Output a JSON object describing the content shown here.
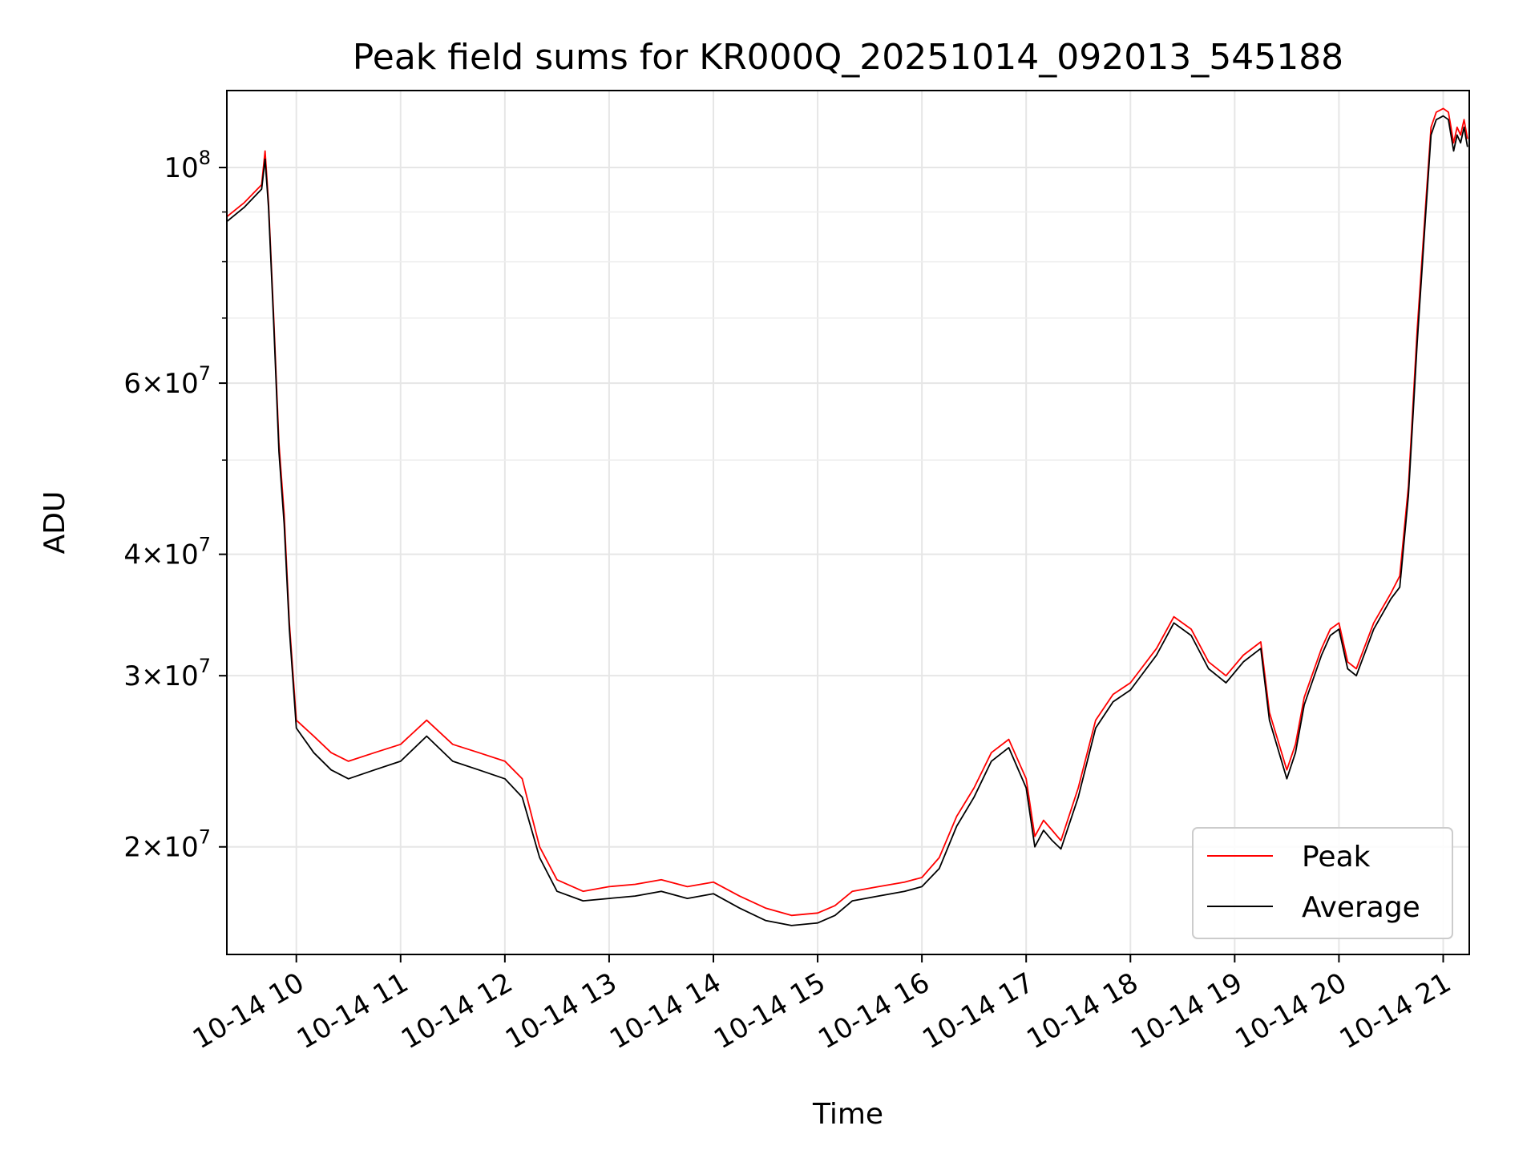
{
  "chart_data": {
    "type": "line",
    "title": "Peak field sums for KR000Q_20251014_092013_545188",
    "xlabel": "Time",
    "ylabel": "ADU",
    "yscale": "log",
    "ylim": [
      15500000,
      120000000
    ],
    "xlim": [
      "2025-10-14 09:20",
      "2025-10-14 21:15"
    ],
    "grid": true,
    "legend_position": "lower-right",
    "x_ticks": [
      {
        "t": "2025-10-14 10:00",
        "label": "10-14 10"
      },
      {
        "t": "2025-10-14 11:00",
        "label": "10-14 11"
      },
      {
        "t": "2025-10-14 12:00",
        "label": "10-14 12"
      },
      {
        "t": "2025-10-14 13:00",
        "label": "10-14 13"
      },
      {
        "t": "2025-10-14 14:00",
        "label": "10-14 14"
      },
      {
        "t": "2025-10-14 15:00",
        "label": "10-14 15"
      },
      {
        "t": "2025-10-14 16:00",
        "label": "10-14 16"
      },
      {
        "t": "2025-10-14 17:00",
        "label": "10-14 17"
      },
      {
        "t": "2025-10-14 18:00",
        "label": "10-14 18"
      },
      {
        "t": "2025-10-14 19:00",
        "label": "10-14 19"
      },
      {
        "t": "2025-10-14 20:00",
        "label": "10-14 20"
      },
      {
        "t": "2025-10-14 21:00",
        "label": "10-14 21"
      }
    ],
    "y_ticks": [
      {
        "value": 20000000,
        "mant": "2",
        "exp": "7"
      },
      {
        "value": 30000000,
        "mant": "3",
        "exp": "7"
      },
      {
        "value": 40000000,
        "mant": "4",
        "exp": "7"
      },
      {
        "value": 60000000,
        "mant": "6",
        "exp": "7"
      },
      {
        "value": 100000000,
        "mant": "",
        "exp": "8"
      }
    ],
    "y_minor": [
      50000000,
      70000000,
      80000000,
      90000000
    ],
    "series": [
      {
        "name": "Peak",
        "color": "#ff0000",
        "x": [
          "2025-10-14 09:20",
          "2025-10-14 09:30",
          "2025-10-14 09:40",
          "2025-10-14 09:42",
          "2025-10-14 09:44",
          "2025-10-14 09:47",
          "2025-10-14 09:50",
          "2025-10-14 09:53",
          "2025-10-14 09:56",
          "2025-10-14 10:00",
          "2025-10-14 10:10",
          "2025-10-14 10:20",
          "2025-10-14 10:30",
          "2025-10-14 10:45",
          "2025-10-14 11:00",
          "2025-10-14 11:15",
          "2025-10-14 11:30",
          "2025-10-14 11:45",
          "2025-10-14 12:00",
          "2025-10-14 12:10",
          "2025-10-14 12:20",
          "2025-10-14 12:30",
          "2025-10-14 12:45",
          "2025-10-14 13:00",
          "2025-10-14 13:15",
          "2025-10-14 13:30",
          "2025-10-14 13:45",
          "2025-10-14 14:00",
          "2025-10-14 14:15",
          "2025-10-14 14:30",
          "2025-10-14 14:45",
          "2025-10-14 15:00",
          "2025-10-14 15:10",
          "2025-10-14 15:20",
          "2025-10-14 15:35",
          "2025-10-14 15:50",
          "2025-10-14 16:00",
          "2025-10-14 16:10",
          "2025-10-14 16:20",
          "2025-10-14 16:30",
          "2025-10-14 16:40",
          "2025-10-14 16:50",
          "2025-10-14 17:00",
          "2025-10-14 17:05",
          "2025-10-14 17:10",
          "2025-10-14 17:15",
          "2025-10-14 17:20",
          "2025-10-14 17:30",
          "2025-10-14 17:40",
          "2025-10-14 17:50",
          "2025-10-14 18:00",
          "2025-10-14 18:15",
          "2025-10-14 18:25",
          "2025-10-14 18:35",
          "2025-10-14 18:45",
          "2025-10-14 18:55",
          "2025-10-14 19:05",
          "2025-10-14 19:15",
          "2025-10-14 19:20",
          "2025-10-14 19:30",
          "2025-10-14 19:35",
          "2025-10-14 19:40",
          "2025-10-14 19:50",
          "2025-10-14 19:55",
          "2025-10-14 20:00",
          "2025-10-14 20:05",
          "2025-10-14 20:10",
          "2025-10-14 20:20",
          "2025-10-14 20:30",
          "2025-10-14 20:35",
          "2025-10-14 20:40",
          "2025-10-14 20:45",
          "2025-10-14 20:50",
          "2025-10-14 20:53",
          "2025-10-14 20:56",
          "2025-10-14 21:00",
          "2025-10-14 21:03",
          "2025-10-14 21:06",
          "2025-10-14 21:08",
          "2025-10-14 21:10",
          "2025-10-14 21:12",
          "2025-10-14 21:14"
        ],
        "y": [
          89000000,
          92000000,
          96000000,
          104000000,
          92000000,
          70000000,
          52000000,
          44000000,
          34000000,
          27000000,
          26000000,
          25000000,
          24500000,
          25000000,
          25500000,
          27000000,
          25500000,
          25000000,
          24500000,
          23500000,
          20000000,
          18500000,
          18000000,
          18200000,
          18300000,
          18500000,
          18200000,
          18400000,
          17800000,
          17300000,
          17000000,
          17100000,
          17400000,
          18000000,
          18200000,
          18400000,
          18600000,
          19500000,
          21500000,
          23000000,
          25000000,
          25800000,
          23500000,
          20500000,
          21300000,
          20800000,
          20300000,
          23000000,
          27000000,
          28700000,
          29500000,
          32000000,
          34500000,
          33500000,
          31000000,
          30000000,
          31500000,
          32500000,
          27500000,
          24000000,
          25500000,
          28500000,
          32000000,
          33500000,
          34000000,
          31000000,
          30500000,
          34000000,
          36500000,
          38000000,
          47000000,
          68000000,
          92000000,
          110000000,
          114000000,
          115000000,
          114000000,
          106000000,
          110000000,
          108000000,
          112000000,
          107000000
        ]
      },
      {
        "name": "Average",
        "color": "#000000",
        "x": [
          "2025-10-14 09:20",
          "2025-10-14 09:30",
          "2025-10-14 09:40",
          "2025-10-14 09:42",
          "2025-10-14 09:44",
          "2025-10-14 09:47",
          "2025-10-14 09:50",
          "2025-10-14 09:53",
          "2025-10-14 09:56",
          "2025-10-14 10:00",
          "2025-10-14 10:10",
          "2025-10-14 10:20",
          "2025-10-14 10:30",
          "2025-10-14 10:45",
          "2025-10-14 11:00",
          "2025-10-14 11:15",
          "2025-10-14 11:30",
          "2025-10-14 11:45",
          "2025-10-14 12:00",
          "2025-10-14 12:10",
          "2025-10-14 12:20",
          "2025-10-14 12:30",
          "2025-10-14 12:45",
          "2025-10-14 13:00",
          "2025-10-14 13:15",
          "2025-10-14 13:30",
          "2025-10-14 13:45",
          "2025-10-14 14:00",
          "2025-10-14 14:15",
          "2025-10-14 14:30",
          "2025-10-14 14:45",
          "2025-10-14 15:00",
          "2025-10-14 15:10",
          "2025-10-14 15:20",
          "2025-10-14 15:35",
          "2025-10-14 15:50",
          "2025-10-14 16:00",
          "2025-10-14 16:10",
          "2025-10-14 16:20",
          "2025-10-14 16:30",
          "2025-10-14 16:40",
          "2025-10-14 16:50",
          "2025-10-14 17:00",
          "2025-10-14 17:05",
          "2025-10-14 17:10",
          "2025-10-14 17:15",
          "2025-10-14 17:20",
          "2025-10-14 17:30",
          "2025-10-14 17:40",
          "2025-10-14 17:50",
          "2025-10-14 18:00",
          "2025-10-14 18:15",
          "2025-10-14 18:25",
          "2025-10-14 18:35",
          "2025-10-14 18:45",
          "2025-10-14 18:55",
          "2025-10-14 19:05",
          "2025-10-14 19:15",
          "2025-10-14 19:20",
          "2025-10-14 19:30",
          "2025-10-14 19:35",
          "2025-10-14 19:40",
          "2025-10-14 19:50",
          "2025-10-14 19:55",
          "2025-10-14 20:00",
          "2025-10-14 20:05",
          "2025-10-14 20:10",
          "2025-10-14 20:20",
          "2025-10-14 20:30",
          "2025-10-14 20:35",
          "2025-10-14 20:40",
          "2025-10-14 20:45",
          "2025-10-14 20:50",
          "2025-10-14 20:53",
          "2025-10-14 20:56",
          "2025-10-14 21:00",
          "2025-10-14 21:03",
          "2025-10-14 21:06",
          "2025-10-14 21:08",
          "2025-10-14 21:10",
          "2025-10-14 21:12",
          "2025-10-14 21:14"
        ],
        "y": [
          88000000,
          91000000,
          95000000,
          102000000,
          91000000,
          69000000,
          51000000,
          43000000,
          33500000,
          26500000,
          25000000,
          24000000,
          23500000,
          24000000,
          24500000,
          26000000,
          24500000,
          24000000,
          23500000,
          22500000,
          19500000,
          18000000,
          17600000,
          17700000,
          17800000,
          18000000,
          17700000,
          17900000,
          17300000,
          16800000,
          16600000,
          16700000,
          17000000,
          17600000,
          17800000,
          18000000,
          18200000,
          19000000,
          21000000,
          22500000,
          24500000,
          25300000,
          23000000,
          20000000,
          20800000,
          20300000,
          19900000,
          22500000,
          26500000,
          28200000,
          29000000,
          31500000,
          34000000,
          33000000,
          30500000,
          29500000,
          31000000,
          32000000,
          27000000,
          23500000,
          25000000,
          28000000,
          31500000,
          33000000,
          33500000,
          30500000,
          30000000,
          33500000,
          36000000,
          37000000,
          46000000,
          66000000,
          90000000,
          108000000,
          112000000,
          113000000,
          112000000,
          104000000,
          108000000,
          106000000,
          110000000,
          105000000
        ]
      }
    ]
  }
}
